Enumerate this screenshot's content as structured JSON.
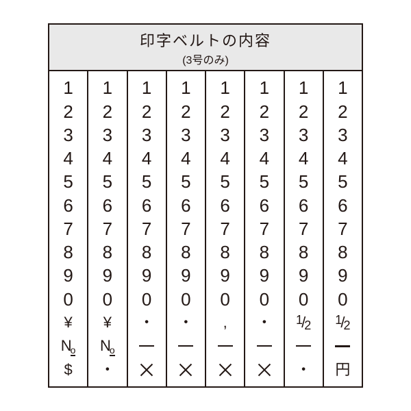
{
  "header": {
    "title": "印字ベルトの内容",
    "subtitle": "(3号のみ)"
  },
  "columns": [
    {
      "cells": [
        "1",
        "2",
        "3",
        "4",
        "5",
        "6",
        "7",
        "8",
        "9",
        "0",
        "yen",
        "no",
        "dollar"
      ]
    },
    {
      "cells": [
        "1",
        "2",
        "3",
        "4",
        "5",
        "6",
        "7",
        "8",
        "9",
        "0",
        "yen",
        "no",
        "dot"
      ]
    },
    {
      "cells": [
        "1",
        "2",
        "3",
        "4",
        "5",
        "6",
        "7",
        "8",
        "9",
        "0",
        "dot",
        "dash",
        "cross"
      ]
    },
    {
      "cells": [
        "1",
        "2",
        "3",
        "4",
        "5",
        "6",
        "7",
        "8",
        "9",
        "0",
        "dot",
        "dash",
        "cross"
      ]
    },
    {
      "cells": [
        "1",
        "2",
        "3",
        "4",
        "5",
        "6",
        "7",
        "8",
        "9",
        "0",
        "comma",
        "dash",
        "cross"
      ]
    },
    {
      "cells": [
        "1",
        "2",
        "3",
        "4",
        "5",
        "6",
        "7",
        "8",
        "9",
        "0",
        "dot",
        "dash",
        "cross"
      ]
    },
    {
      "cells": [
        "1",
        "2",
        "3",
        "4",
        "5",
        "6",
        "7",
        "8",
        "9",
        "0",
        "half",
        "dash",
        "dot"
      ]
    },
    {
      "cells": [
        "1",
        "2",
        "3",
        "4",
        "5",
        "6",
        "7",
        "8",
        "9",
        "0",
        "half",
        "dashthick",
        "yen_kanji"
      ]
    }
  ],
  "symbols": {
    "yen": "¥",
    "no_prefix": "N",
    "no_suffix": "o",
    "dollar": "$",
    "dot_char": "・",
    "comma_char": ",",
    "half_num": "1",
    "half_slash": "/",
    "half_den": "2",
    "yen_kanji": "円"
  },
  "style": {
    "border_color": "#231815",
    "header_bg": "#e9e9e9",
    "text_color": "#231815",
    "title_fontsize": 22,
    "subtitle_fontsize": 16,
    "cell_fontsize": 26
  }
}
